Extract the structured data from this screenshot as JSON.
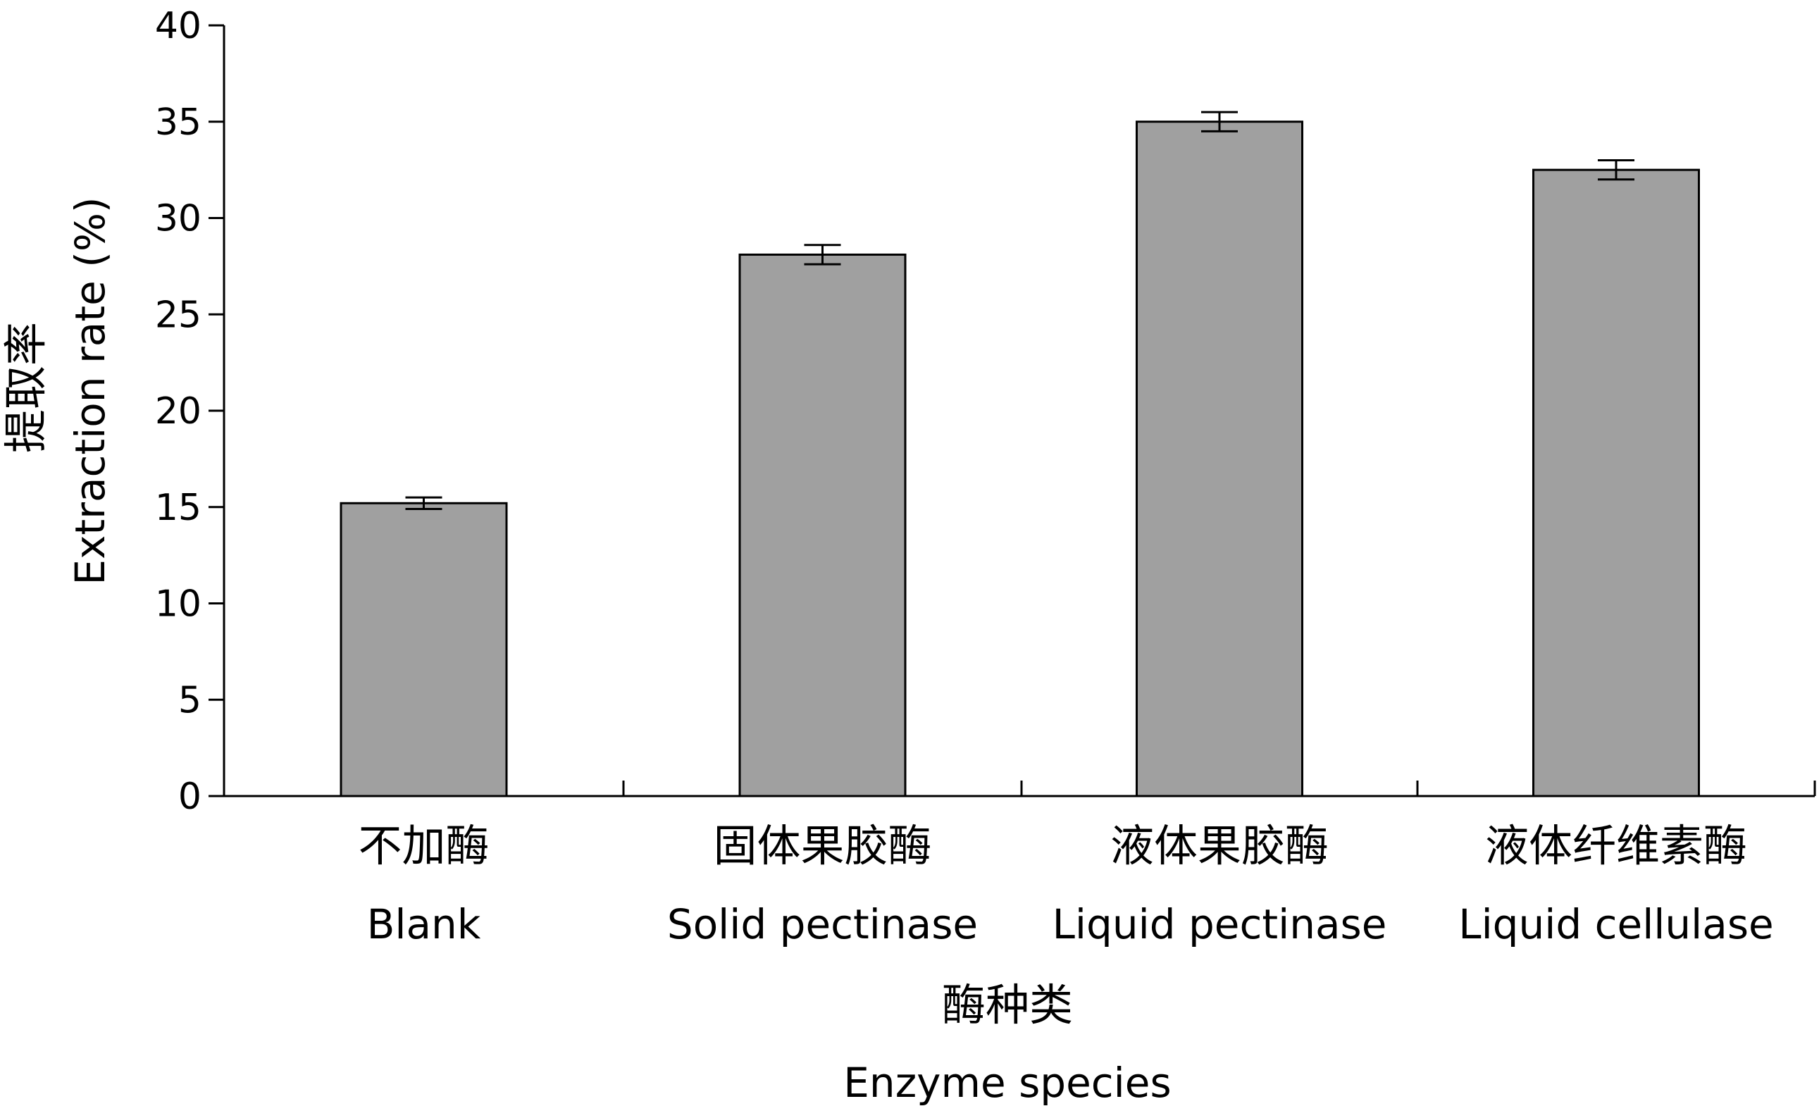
{
  "chart_data": {
    "type": "bar",
    "categories": [
      {
        "zh": "不加酶",
        "en": "Blank"
      },
      {
        "zh": "固体果胶酶",
        "en": "Solid pectinase"
      },
      {
        "zh": "液体果胶酶",
        "en": "Liquid pectinase"
      },
      {
        "zh": "液体纤维素酶",
        "en": "Liquid cellulase"
      }
    ],
    "values": [
      15.2,
      28.1,
      35.0,
      32.5
    ],
    "errors": [
      0.3,
      0.5,
      0.5,
      0.5
    ],
    "ylabel_zh": "提取率",
    "ylabel_en": "Extraction rate (%)",
    "xlabel_zh": "酶种类",
    "xlabel_en": "Enzyme species",
    "ylim": [
      0,
      40
    ],
    "yticks": [
      0,
      5,
      10,
      15,
      20,
      25,
      30,
      35,
      40
    ],
    "bar_color": "#a0a0a0",
    "grid": false
  }
}
